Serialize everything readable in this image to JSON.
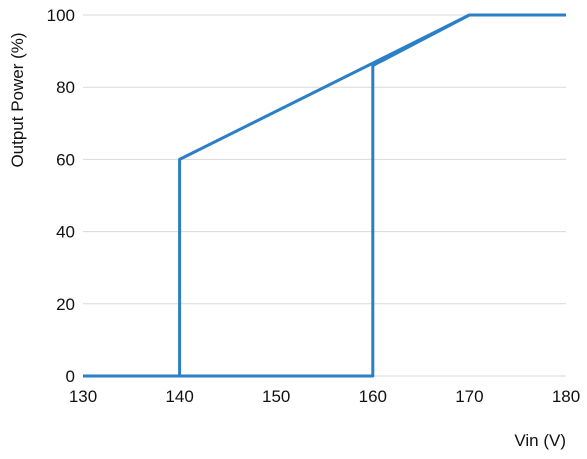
{
  "chart_data": {
    "type": "line",
    "title": "",
    "xlabel": "Vin (V)",
    "ylabel": "Output Power (%)",
    "xlim": [
      130,
      180
    ],
    "ylim": [
      0,
      100
    ],
    "x_ticks": [
      130,
      140,
      150,
      160,
      170,
      180
    ],
    "y_ticks": [
      0,
      20,
      40,
      60,
      80,
      100
    ],
    "grid": "horizontal",
    "legend": "none",
    "series_color": "#2a7fc6",
    "series": [
      {
        "points": [
          {
            "x": 130,
            "y": 0
          },
          {
            "x": 140,
            "y": 0
          },
          {
            "x": 140,
            "y": 60
          },
          {
            "x": 170,
            "y": 100
          },
          {
            "x": 180,
            "y": 100
          }
        ]
      },
      {
        "points": [
          {
            "x": 130,
            "y": 0
          },
          {
            "x": 160,
            "y": 0
          },
          {
            "x": 160,
            "y": 86
          },
          {
            "x": 170,
            "y": 100
          },
          {
            "x": 180,
            "y": 100
          }
        ]
      }
    ]
  }
}
